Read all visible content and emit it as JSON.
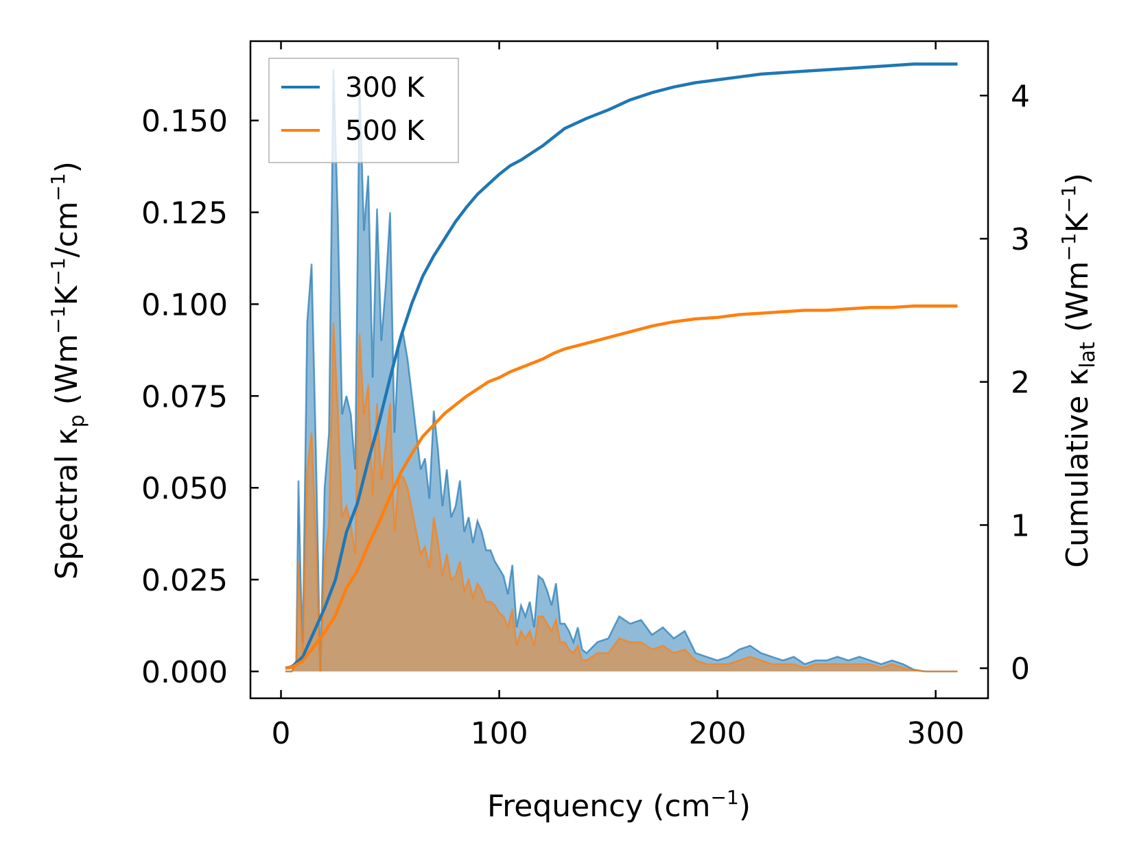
{
  "chart_data": {
    "type": "area",
    "xlabel": "Frequency (cm",
    "xlabel_sup": "−1",
    "xlabel_tail": ")",
    "ylabel_left": {
      "prefix": "Spectral κ",
      "sub": "p",
      "unit_a": " (Wm",
      "sup_a": "−1",
      "unit_b": "K",
      "sup_b": "−1",
      "unit_c": "/cm",
      "sup_c": "−1",
      "tail": ")"
    },
    "ylabel_right": {
      "prefix": "Cumulative κ",
      "sub": "lat",
      "unit_a": " (Wm",
      "sup_a": "−1",
      "unit_b": "K",
      "sup_b": "−1",
      "tail": ")"
    },
    "xlim": [
      -14,
      324
    ],
    "ylim_left": [
      -0.0073,
      0.1716
    ],
    "ylim_right": [
      -0.21,
      4.38
    ],
    "x_ticks": [
      0,
      100,
      200,
      300
    ],
    "x_tick_labels": [
      "0",
      "100",
      "200",
      "300"
    ],
    "y_left_ticks": [
      0.0,
      0.025,
      0.05,
      0.075,
      0.1,
      0.125,
      0.15
    ],
    "y_left_tick_labels": [
      "0.000",
      "0.025",
      "0.050",
      "0.075",
      "0.100",
      "0.125",
      "0.150"
    ],
    "y_right_ticks": [
      0,
      1,
      2,
      3,
      4
    ],
    "y_right_tick_labels": [
      "0",
      "1",
      "2",
      "3",
      "4"
    ],
    "legend": {
      "position": "top-left",
      "entries": [
        "300 K",
        "500 K"
      ]
    },
    "colors": {
      "300 K": "#1f77b4",
      "500 K": "#ff7f0e"
    },
    "spectral_x": [
      2,
      5,
      7,
      8,
      9,
      10,
      12,
      14,
      16,
      18,
      20,
      22,
      24,
      26,
      28,
      30,
      32,
      34,
      36,
      38,
      40,
      42,
      44,
      46,
      48,
      50,
      52,
      54,
      56,
      58,
      60,
      62,
      64,
      66,
      68,
      70,
      72,
      74,
      76,
      78,
      80,
      82,
      84,
      86,
      88,
      90,
      92,
      94,
      96,
      98,
      100,
      102,
      104,
      106,
      108,
      110,
      112,
      114,
      116,
      118,
      120,
      122,
      124,
      126,
      128,
      130,
      132,
      134,
      136,
      138,
      140,
      145,
      150,
      155,
      160,
      165,
      170,
      175,
      180,
      185,
      190,
      195,
      200,
      205,
      210,
      215,
      220,
      225,
      230,
      235,
      240,
      245,
      250,
      255,
      260,
      265,
      270,
      275,
      280,
      285,
      290,
      295,
      300,
      305,
      310
    ],
    "series": [
      {
        "name": "300 K",
        "spectral": [
          0.0,
          0.0,
          0.003,
          0.052,
          0.025,
          0.008,
          0.095,
          0.111,
          0.06,
          0.0,
          0.05,
          0.065,
          0.164,
          0.125,
          0.07,
          0.075,
          0.07,
          0.055,
          0.16,
          0.12,
          0.135,
          0.08,
          0.126,
          0.09,
          0.105,
          0.125,
          0.065,
          0.09,
          0.092,
          0.085,
          0.075,
          0.065,
          0.055,
          0.058,
          0.047,
          0.071,
          0.06,
          0.045,
          0.055,
          0.042,
          0.045,
          0.052,
          0.038,
          0.042,
          0.035,
          0.041,
          0.038,
          0.033,
          0.033,
          0.03,
          0.028,
          0.026,
          0.021,
          0.029,
          0.012,
          0.018,
          0.015,
          0.019,
          0.012,
          0.026,
          0.025,
          0.022,
          0.018,
          0.024,
          0.013,
          0.013,
          0.011,
          0.008,
          0.012,
          0.006,
          0.005,
          0.008,
          0.009,
          0.015,
          0.013,
          0.014,
          0.01,
          0.012,
          0.009,
          0.011,
          0.005,
          0.004,
          0.003,
          0.004,
          0.006,
          0.007,
          0.005,
          0.004,
          0.003,
          0.004,
          0.002,
          0.003,
          0.003,
          0.004,
          0.003,
          0.004,
          0.003,
          0.002,
          0.003,
          0.002,
          0.0005,
          0.0,
          0.0,
          0.0,
          0.0
        ],
        "cumulative_x": [
          2,
          5,
          10,
          15,
          20,
          25,
          30,
          35,
          40,
          45,
          50,
          55,
          60,
          65,
          70,
          75,
          80,
          85,
          90,
          95,
          100,
          105,
          110,
          115,
          120,
          125,
          130,
          140,
          150,
          160,
          170,
          180,
          190,
          200,
          210,
          220,
          230,
          240,
          250,
          260,
          270,
          280,
          290,
          300,
          310
        ],
        "cumulative": [
          0.0,
          0.01,
          0.08,
          0.25,
          0.42,
          0.62,
          0.95,
          1.15,
          1.45,
          1.72,
          2.03,
          2.32,
          2.55,
          2.74,
          2.88,
          3.0,
          3.12,
          3.22,
          3.31,
          3.38,
          3.45,
          3.51,
          3.55,
          3.6,
          3.65,
          3.71,
          3.77,
          3.84,
          3.9,
          3.97,
          4.02,
          4.06,
          4.09,
          4.11,
          4.13,
          4.15,
          4.16,
          4.17,
          4.18,
          4.19,
          4.2,
          4.21,
          4.22,
          4.22,
          4.22
        ]
      },
      {
        "name": "500 K",
        "spectral": [
          0.0,
          0.0,
          0.002,
          0.03,
          0.015,
          0.005,
          0.055,
          0.065,
          0.035,
          0.0,
          0.03,
          0.04,
          0.095,
          0.072,
          0.042,
          0.045,
          0.04,
          0.032,
          0.092,
          0.07,
          0.078,
          0.048,
          0.073,
          0.052,
          0.062,
          0.073,
          0.038,
          0.053,
          0.053,
          0.05,
          0.044,
          0.038,
          0.032,
          0.034,
          0.028,
          0.042,
          0.035,
          0.026,
          0.032,
          0.025,
          0.026,
          0.03,
          0.022,
          0.025,
          0.02,
          0.024,
          0.022,
          0.019,
          0.019,
          0.018,
          0.016,
          0.015,
          0.012,
          0.017,
          0.007,
          0.011,
          0.009,
          0.011,
          0.007,
          0.015,
          0.015,
          0.013,
          0.011,
          0.014,
          0.008,
          0.008,
          0.006,
          0.005,
          0.007,
          0.003,
          0.003,
          0.005,
          0.005,
          0.009,
          0.008,
          0.008,
          0.006,
          0.007,
          0.005,
          0.006,
          0.003,
          0.002,
          0.002,
          0.002,
          0.003,
          0.004,
          0.003,
          0.002,
          0.002,
          0.002,
          0.001,
          0.002,
          0.002,
          0.002,
          0.002,
          0.002,
          0.002,
          0.001,
          0.002,
          0.001,
          0.0003,
          0.0,
          0.0,
          0.0,
          0.0
        ],
        "cumulative_x": [
          2,
          5,
          10,
          15,
          20,
          25,
          30,
          35,
          40,
          45,
          50,
          55,
          60,
          65,
          70,
          75,
          80,
          85,
          90,
          95,
          100,
          105,
          110,
          115,
          120,
          125,
          130,
          140,
          150,
          160,
          170,
          180,
          190,
          200,
          210,
          220,
          230,
          240,
          250,
          260,
          270,
          280,
          290,
          300,
          310
        ],
        "cumulative": [
          0.0,
          0.006,
          0.05,
          0.15,
          0.25,
          0.37,
          0.56,
          0.68,
          0.86,
          1.02,
          1.2,
          1.37,
          1.5,
          1.62,
          1.7,
          1.78,
          1.84,
          1.9,
          1.95,
          2.0,
          2.03,
          2.07,
          2.1,
          2.13,
          2.16,
          2.2,
          2.23,
          2.27,
          2.31,
          2.35,
          2.39,
          2.42,
          2.44,
          2.45,
          2.47,
          2.48,
          2.49,
          2.5,
          2.5,
          2.51,
          2.52,
          2.52,
          2.53,
          2.53,
          2.53
        ]
      }
    ]
  }
}
